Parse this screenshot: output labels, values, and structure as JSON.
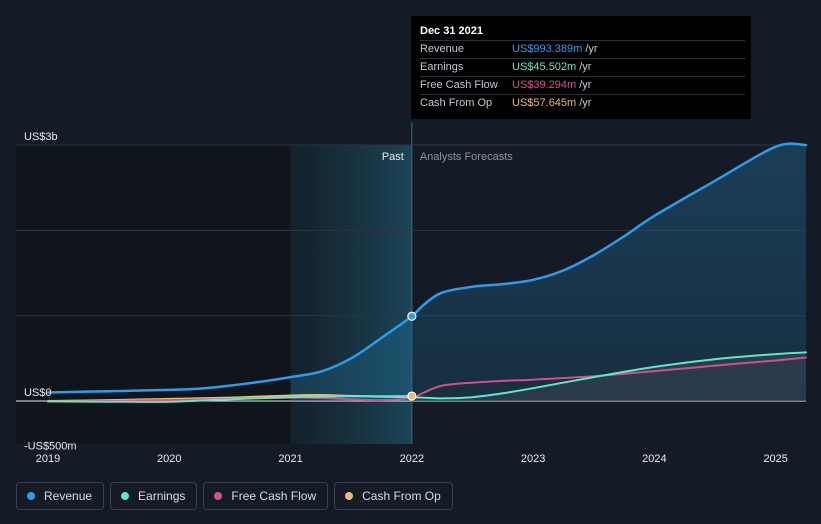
{
  "tooltip": {
    "date": "Dec 31 2021",
    "rows": [
      {
        "label": "Revenue",
        "value": "US$993.389m",
        "unit": "/yr",
        "color": "#2d9cec"
      },
      {
        "label": "Earnings",
        "value": "US$45.502m",
        "unit": "/yr",
        "color": "#5ee7c8"
      },
      {
        "label": "Free Cash Flow",
        "value": "US$39.294m",
        "unit": "/yr",
        "color": "#d0508c"
      },
      {
        "label": "Cash From Op",
        "value": "US$57.645m",
        "unit": "/yr",
        "color": "#f0b96a"
      }
    ]
  },
  "legend": [
    {
      "label": "Revenue",
      "color": "#2d9cec"
    },
    {
      "label": "Earnings",
      "color": "#5ee7c8"
    },
    {
      "label": "Free Cash Flow",
      "color": "#d0508c"
    },
    {
      "label": "Cash From Op",
      "color": "#f0b96a"
    }
  ],
  "chart_data": {
    "type": "line",
    "title": "",
    "xlabel": "",
    "ylabel": "",
    "unit": "US$ millions",
    "xlim": [
      2019.0,
      2025.25
    ],
    "ylim": [
      -500,
      3000
    ],
    "divider_x": 2022.0,
    "past_label": "Past",
    "forecast_label": "Analysts Forecasts",
    "y_tick_labels": [
      {
        "value": 3000,
        "label": "US$3b"
      },
      {
        "value": 0,
        "label": "US$0"
      },
      {
        "value": -500,
        "label": "-US$500m"
      }
    ],
    "y_gridlines": [
      3000,
      2000,
      1000,
      0
    ],
    "x_ticks": [
      2019,
      2020,
      2021,
      2022,
      2023,
      2024,
      2025
    ],
    "highlight": {
      "x": 2022.0,
      "series": [
        "Revenue",
        "Cash From Op"
      ]
    },
    "series": [
      {
        "name": "Revenue",
        "color": "#2d9cec",
        "width": 2.5,
        "fill": true,
        "points": [
          [
            2019.0,
            100
          ],
          [
            2019.5,
            115
          ],
          [
            2020.0,
            130
          ],
          [
            2020.25,
            145
          ],
          [
            2020.5,
            180
          ],
          [
            2020.75,
            225
          ],
          [
            2021.0,
            280
          ],
          [
            2021.25,
            345
          ],
          [
            2021.5,
            500
          ],
          [
            2021.75,
            740
          ],
          [
            2022.0,
            993
          ],
          [
            2022.1,
            1130
          ],
          [
            2022.25,
            1270
          ],
          [
            2022.5,
            1340
          ],
          [
            2022.75,
            1370
          ],
          [
            2023.0,
            1420
          ],
          [
            2023.25,
            1530
          ],
          [
            2023.5,
            1710
          ],
          [
            2023.75,
            1930
          ],
          [
            2024.0,
            2170
          ],
          [
            2024.5,
            2580
          ],
          [
            2025.0,
            2980
          ],
          [
            2025.25,
            3000
          ]
        ]
      },
      {
        "name": "Earnings",
        "color": "#5ee7c8",
        "width": 2,
        "fill": false,
        "points": [
          [
            2019.0,
            -5
          ],
          [
            2019.5,
            -8
          ],
          [
            2020.0,
            -8
          ],
          [
            2020.5,
            20
          ],
          [
            2021.0,
            45
          ],
          [
            2021.25,
            50
          ],
          [
            2021.5,
            55
          ],
          [
            2021.75,
            50
          ],
          [
            2022.0,
            45
          ],
          [
            2022.25,
            30
          ],
          [
            2022.5,
            45
          ],
          [
            2022.75,
            90
          ],
          [
            2023.0,
            150
          ],
          [
            2023.5,
            280
          ],
          [
            2024.0,
            400
          ],
          [
            2024.5,
            490
          ],
          [
            2025.0,
            550
          ],
          [
            2025.25,
            570
          ]
        ]
      },
      {
        "name": "Free Cash Flow",
        "color": "#d0508c",
        "width": 2,
        "fill": false,
        "points": [
          [
            2019.0,
            -5
          ],
          [
            2019.5,
            0
          ],
          [
            2020.0,
            10
          ],
          [
            2020.5,
            25
          ],
          [
            2021.0,
            40
          ],
          [
            2021.25,
            35
          ],
          [
            2021.5,
            20
          ],
          [
            2021.75,
            10
          ],
          [
            2022.0,
            39
          ],
          [
            2022.1,
            100
          ],
          [
            2022.25,
            180
          ],
          [
            2022.5,
            215
          ],
          [
            2022.75,
            235
          ],
          [
            2023.0,
            250
          ],
          [
            2023.5,
            290
          ],
          [
            2024.0,
            350
          ],
          [
            2024.5,
            415
          ],
          [
            2025.0,
            475
          ],
          [
            2025.25,
            510
          ]
        ]
      },
      {
        "name": "Cash From Op",
        "color": "#f0b96a",
        "width": 2,
        "fill": false,
        "points": [
          [
            2019.0,
            0
          ],
          [
            2019.5,
            10
          ],
          [
            2020.0,
            25
          ],
          [
            2020.5,
            40
          ],
          [
            2021.0,
            65
          ],
          [
            2021.25,
            70
          ],
          [
            2021.5,
            60
          ],
          [
            2021.75,
            55
          ],
          [
            2022.0,
            58
          ]
        ]
      }
    ]
  }
}
